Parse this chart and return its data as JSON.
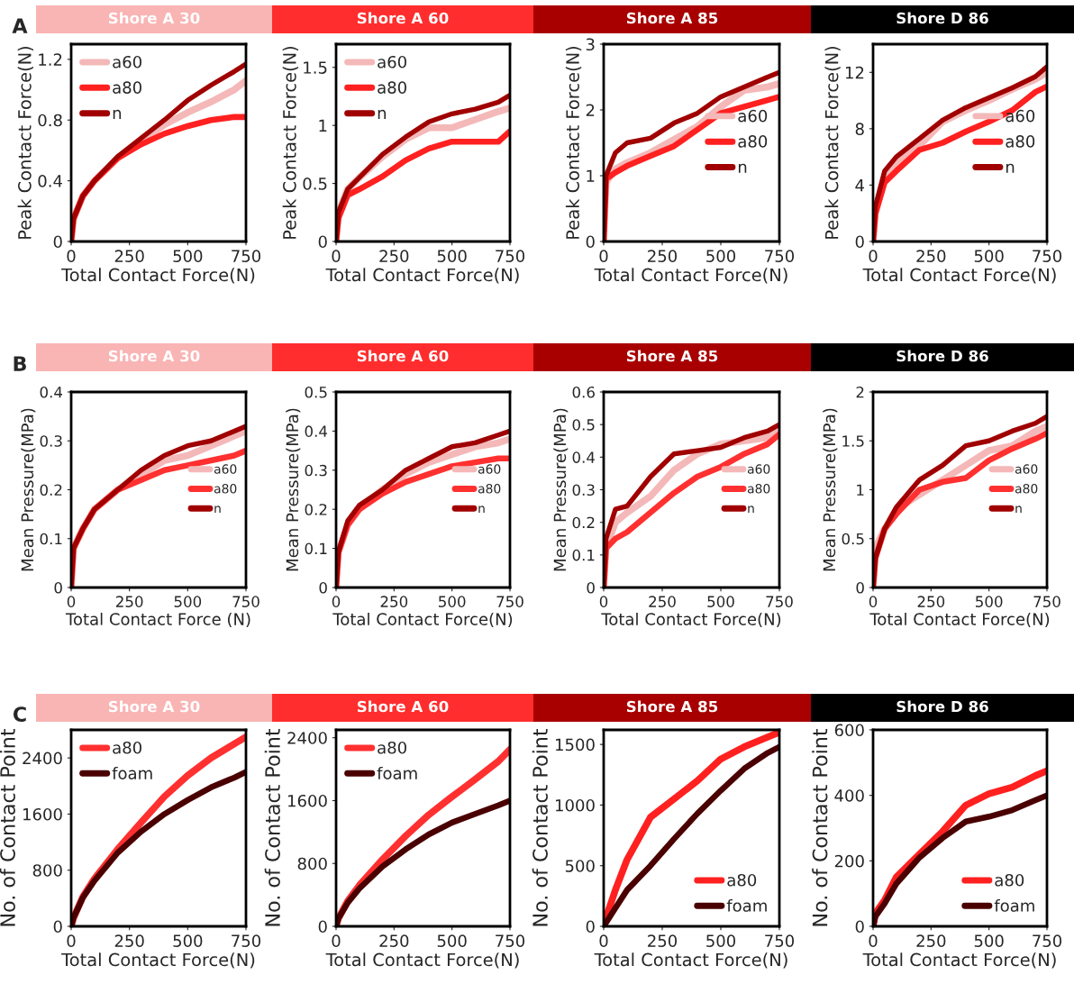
{
  "chart_data": [
    {
      "type": "line",
      "title": "Shore A 30",
      "annotations": [
        "A"
      ],
      "xlabel": "Total Contact Force(N)",
      "ylabel": "Peak Contact Force(N)",
      "x": [
        0,
        10,
        50,
        100,
        200,
        300,
        400,
        500,
        600,
        700,
        750
      ],
      "xlim": [
        0,
        750
      ],
      "xticks": [
        0,
        250,
        500,
        750
      ],
      "ylim": [
        0,
        1.3
      ],
      "yticks": [
        0,
        0.4,
        0.8,
        1.2
      ],
      "legend": "top left",
      "series": [
        {
          "name": "a60",
          "color": "#f4b8b8",
          "values": [
            0,
            0.15,
            0.3,
            0.4,
            0.55,
            0.66,
            0.77,
            0.85,
            0.92,
            1.0,
            1.06
          ]
        },
        {
          "name": "a80",
          "color": "#ff2020",
          "values": [
            0,
            0.15,
            0.3,
            0.4,
            0.55,
            0.64,
            0.71,
            0.76,
            0.8,
            0.82,
            0.82
          ]
        },
        {
          "name": "n",
          "color": "#a00000",
          "values": [
            0,
            0.15,
            0.3,
            0.4,
            0.56,
            0.68,
            0.8,
            0.93,
            1.03,
            1.12,
            1.17
          ]
        }
      ]
    },
    {
      "type": "line",
      "title": "Shore A 60",
      "xlabel": "Total Contact Force(N)",
      "ylabel": "Peak Contact Force(N)",
      "x": [
        0,
        10,
        50,
        100,
        200,
        300,
        400,
        500,
        600,
        700,
        750
      ],
      "xlim": [
        0,
        750
      ],
      "xticks": [
        0,
        250,
        500,
        750
      ],
      "ylim": [
        0,
        1.7
      ],
      "yticks": [
        0,
        0.5,
        1,
        1.5
      ],
      "legend": "top left",
      "series": [
        {
          "name": "a60",
          "color": "#f4b8b8",
          "values": [
            0,
            0.25,
            0.45,
            0.55,
            0.73,
            0.88,
            0.98,
            0.98,
            1.05,
            1.12,
            1.15
          ]
        },
        {
          "name": "a80",
          "color": "#ff2020",
          "values": [
            0,
            0.2,
            0.4,
            0.45,
            0.56,
            0.7,
            0.8,
            0.86,
            0.86,
            0.86,
            0.95
          ]
        },
        {
          "name": "n",
          "color": "#a00000",
          "values": [
            0,
            0.25,
            0.45,
            0.55,
            0.75,
            0.9,
            1.03,
            1.1,
            1.14,
            1.2,
            1.26
          ]
        }
      ]
    },
    {
      "type": "line",
      "title": "Shore A 85",
      "xlabel": "Total Contact Force(N)",
      "ylabel": "Peak Contact Force(N)",
      "x": [
        0,
        10,
        50,
        100,
        200,
        300,
        400,
        500,
        600,
        700,
        750
      ],
      "xlim": [
        0,
        750
      ],
      "xticks": [
        0,
        250,
        500,
        750
      ],
      "ylim": [
        0,
        3
      ],
      "yticks": [
        0,
        1,
        2,
        3
      ],
      "legend": "center right",
      "series": [
        {
          "name": "a60",
          "color": "#f4b8b8",
          "values": [
            0,
            0.9,
            1.1,
            1.2,
            1.35,
            1.55,
            1.75,
            2.05,
            2.3,
            2.35,
            2.4
          ]
        },
        {
          "name": "a80",
          "color": "#ff2020",
          "values": [
            0,
            0.95,
            1.05,
            1.15,
            1.3,
            1.45,
            1.7,
            1.95,
            2.05,
            2.15,
            2.2
          ]
        },
        {
          "name": "n",
          "color": "#a00000",
          "values": [
            0,
            1.0,
            1.35,
            1.5,
            1.57,
            1.8,
            1.95,
            2.2,
            2.35,
            2.5,
            2.57
          ]
        }
      ]
    },
    {
      "type": "line",
      "title": "Shore D 86",
      "xlabel": "Total Contact Force(N)",
      "ylabel": "Peak Contact Force(N)",
      "x": [
        0,
        10,
        50,
        100,
        200,
        300,
        400,
        500,
        600,
        700,
        750
      ],
      "xlim": [
        0,
        750
      ],
      "xticks": [
        0,
        250,
        500,
        750
      ],
      "ylim": [
        0,
        14
      ],
      "yticks": [
        0,
        4,
        8,
        12
      ],
      "legend": "center right",
      "series": [
        {
          "name": "a60",
          "color": "#f4b8b8",
          "values": [
            0,
            2.0,
            4.5,
            5.5,
            6.8,
            8.5,
            9.3,
            10.0,
            10.8,
            11.5,
            12.0
          ]
        },
        {
          "name": "a80",
          "color": "#ff2020",
          "values": [
            0,
            2.0,
            4.2,
            5.0,
            6.5,
            7.0,
            7.8,
            8.5,
            9.3,
            10.6,
            11.0
          ]
        },
        {
          "name": "n",
          "color": "#a00000",
          "values": [
            0,
            2.5,
            5.0,
            6.0,
            7.3,
            8.6,
            9.5,
            10.2,
            10.9,
            11.7,
            12.4
          ]
        }
      ]
    },
    {
      "type": "line",
      "title": "Shore A 30",
      "annotations": [
        "B"
      ],
      "xlabel": "Total Contact Force (N)",
      "ylabel": "Mean Pressure(MPa)",
      "x": [
        0,
        10,
        50,
        100,
        200,
        300,
        400,
        500,
        600,
        700,
        750
      ],
      "xlim": [
        0,
        750
      ],
      "xticks": [
        0,
        250,
        500,
        750
      ],
      "ylim": [
        0,
        0.4
      ],
      "yticks": [
        0,
        0.1,
        0.2,
        0.3,
        0.4
      ],
      "legend": "center right",
      "series": [
        {
          "name": "a60",
          "color": "#f4b8b8",
          "values": [
            0,
            0.08,
            0.12,
            0.16,
            0.2,
            0.23,
            0.26,
            0.27,
            0.29,
            0.31,
            0.32
          ]
        },
        {
          "name": "a80",
          "color": "#ff3030",
          "values": [
            0,
            0.08,
            0.12,
            0.16,
            0.2,
            0.22,
            0.24,
            0.25,
            0.26,
            0.27,
            0.28
          ]
        },
        {
          "name": "n",
          "color": "#a00000",
          "values": [
            0,
            0.08,
            0.12,
            0.16,
            0.2,
            0.24,
            0.27,
            0.29,
            0.3,
            0.32,
            0.33
          ]
        }
      ]
    },
    {
      "type": "line",
      "title": "Shore A 60",
      "xlabel": "Total Contact Force(N)",
      "ylabel": "Mean Pressure(MPa)",
      "x": [
        0,
        10,
        50,
        100,
        200,
        300,
        400,
        500,
        600,
        700,
        750
      ],
      "xlim": [
        0,
        750
      ],
      "xticks": [
        0,
        250,
        500,
        750
      ],
      "ylim": [
        0,
        0.5
      ],
      "yticks": [
        0,
        0.1,
        0.2,
        0.3,
        0.4,
        0.5
      ],
      "legend": "center right",
      "series": [
        {
          "name": "a60",
          "color": "#f4b8b8",
          "values": [
            0,
            0.09,
            0.16,
            0.2,
            0.25,
            0.29,
            0.32,
            0.34,
            0.36,
            0.37,
            0.38
          ]
        },
        {
          "name": "a80",
          "color": "#ff3030",
          "values": [
            0,
            0.09,
            0.16,
            0.2,
            0.24,
            0.27,
            0.29,
            0.31,
            0.32,
            0.33,
            0.33
          ]
        },
        {
          "name": "n",
          "color": "#a00000",
          "values": [
            0,
            0.09,
            0.17,
            0.21,
            0.25,
            0.3,
            0.33,
            0.36,
            0.37,
            0.39,
            0.4
          ]
        }
      ]
    },
    {
      "type": "line",
      "title": "Shore A 85",
      "xlabel": "Total Contact Force(N)",
      "ylabel": "Mean Pressure(MPa)",
      "x": [
        0,
        10,
        50,
        100,
        200,
        300,
        400,
        500,
        600,
        700,
        750
      ],
      "xlim": [
        0,
        750
      ],
      "xticks": [
        0,
        250,
        500,
        750
      ],
      "ylim": [
        0,
        0.6
      ],
      "yticks": [
        0,
        0.1,
        0.2,
        0.3,
        0.4,
        0.5,
        0.6
      ],
      "legend": "center right",
      "series": [
        {
          "name": "a60",
          "color": "#f4b8b8",
          "values": [
            0,
            0.12,
            0.2,
            0.23,
            0.28,
            0.36,
            0.41,
            0.44,
            0.45,
            0.46,
            0.48
          ]
        },
        {
          "name": "a80",
          "color": "#ff3030",
          "values": [
            0,
            0.12,
            0.15,
            0.17,
            0.23,
            0.29,
            0.34,
            0.37,
            0.41,
            0.44,
            0.47
          ]
        },
        {
          "name": "n",
          "color": "#a00000",
          "values": [
            0,
            0.15,
            0.24,
            0.25,
            0.34,
            0.41,
            0.42,
            0.43,
            0.46,
            0.48,
            0.5
          ]
        }
      ]
    },
    {
      "type": "line",
      "title": "Shore D 86",
      "xlabel": "Total Contact Force(N)",
      "ylabel": "Mean Pressure(MPa)",
      "x": [
        0,
        10,
        50,
        100,
        200,
        300,
        400,
        500,
        600,
        700,
        750
      ],
      "xlim": [
        0,
        750
      ],
      "xticks": [
        0,
        250,
        500,
        750
      ],
      "ylim": [
        0,
        2
      ],
      "yticks": [
        0,
        0.5,
        1,
        1.5,
        2
      ],
      "legend": "center right",
      "series": [
        {
          "name": "a60",
          "color": "#f4b8b8",
          "values": [
            0,
            0.4,
            0.6,
            0.8,
            0.95,
            1.1,
            1.25,
            1.4,
            1.45,
            1.6,
            1.65
          ]
        },
        {
          "name": "a80",
          "color": "#ff3030",
          "values": [
            0,
            0.3,
            0.6,
            0.75,
            1.0,
            1.08,
            1.12,
            1.3,
            1.42,
            1.52,
            1.58
          ]
        },
        {
          "name": "n",
          "color": "#a00000",
          "values": [
            0,
            0.3,
            0.6,
            0.82,
            1.1,
            1.25,
            1.45,
            1.5,
            1.6,
            1.68,
            1.75
          ]
        }
      ]
    },
    {
      "type": "line",
      "title": "Shore A 30",
      "annotations": [
        "C"
      ],
      "xlabel": "Total Contact Force(N)",
      "ylabel": "No. of Contact Point",
      "x": [
        0,
        10,
        50,
        100,
        200,
        300,
        400,
        500,
        600,
        700,
        750
      ],
      "xlim": [
        0,
        750
      ],
      "xticks": [
        0,
        250,
        500,
        750
      ],
      "ylim": [
        0,
        2800
      ],
      "yticks": [
        0,
        800,
        1600,
        2400
      ],
      "legend": "top left",
      "series": [
        {
          "name": "a80",
          "color": "#ff3030",
          "values": [
            0,
            120,
            420,
            680,
            1100,
            1480,
            1850,
            2150,
            2400,
            2600,
            2700
          ]
        },
        {
          "name": "foam",
          "color": "#4a0000",
          "values": [
            0,
            120,
            410,
            650,
            1050,
            1350,
            1600,
            1800,
            1980,
            2120,
            2200
          ]
        }
      ]
    },
    {
      "type": "line",
      "title": "Shore A 60",
      "xlabel": "Total Contact Force(N)",
      "ylabel": "No. of Contact Point",
      "x": [
        0,
        10,
        50,
        100,
        200,
        300,
        400,
        500,
        600,
        700,
        750
      ],
      "xlim": [
        0,
        750
      ],
      "xticks": [
        0,
        250,
        500,
        750
      ],
      "ylim": [
        0,
        2500
      ],
      "yticks": [
        0,
        800,
        1600,
        2400
      ],
      "legend": "top left",
      "series": [
        {
          "name": "a80",
          "color": "#ff3030",
          "values": [
            0,
            100,
            320,
            520,
            850,
            1150,
            1420,
            1650,
            1870,
            2100,
            2250
          ]
        },
        {
          "name": "foam",
          "color": "#4a0000",
          "values": [
            0,
            100,
            300,
            480,
            760,
            980,
            1170,
            1320,
            1430,
            1540,
            1600
          ]
        }
      ]
    },
    {
      "type": "line",
      "title": "Shore A 85",
      "xlabel": "Total Contact Force(N)",
      "ylabel": "No. of Contact Point",
      "x": [
        0,
        10,
        50,
        100,
        200,
        300,
        400,
        500,
        600,
        700,
        750
      ],
      "xlim": [
        0,
        750
      ],
      "xticks": [
        0,
        250,
        500,
        750
      ],
      "ylim": [
        0,
        1620
      ],
      "yticks": [
        0,
        500,
        1000,
        1500
      ],
      "legend": "bottom right",
      "series": [
        {
          "name": "a80",
          "color": "#ff2020",
          "values": [
            0,
            70,
            300,
            550,
            900,
            1050,
            1200,
            1380,
            1480,
            1560,
            1600
          ]
        },
        {
          "name": "foam",
          "color": "#4a0000",
          "values": [
            0,
            30,
            150,
            300,
            500,
            720,
            930,
            1120,
            1300,
            1430,
            1480
          ]
        }
      ]
    },
    {
      "type": "line",
      "title": "Shore D 86",
      "xlabel": "Total Contact Force(N)",
      "ylabel": "No. of Contact Point",
      "x": [
        0,
        10,
        50,
        100,
        200,
        300,
        400,
        500,
        600,
        700,
        750
      ],
      "xlim": [
        0,
        750
      ],
      "xticks": [
        0,
        250,
        500,
        750
      ],
      "ylim": [
        0,
        600
      ],
      "yticks": [
        0,
        200,
        400,
        600
      ],
      "legend": "bottom right",
      "series": [
        {
          "name": "a80",
          "color": "#ff2020",
          "values": [
            0,
            40,
            80,
            150,
            220,
            290,
            370,
            405,
            425,
            460,
            475
          ]
        },
        {
          "name": "foam",
          "color": "#4a0000",
          "values": [
            0,
            30,
            70,
            130,
            210,
            270,
            320,
            335,
            355,
            385,
            400
          ]
        }
      ]
    }
  ]
}
